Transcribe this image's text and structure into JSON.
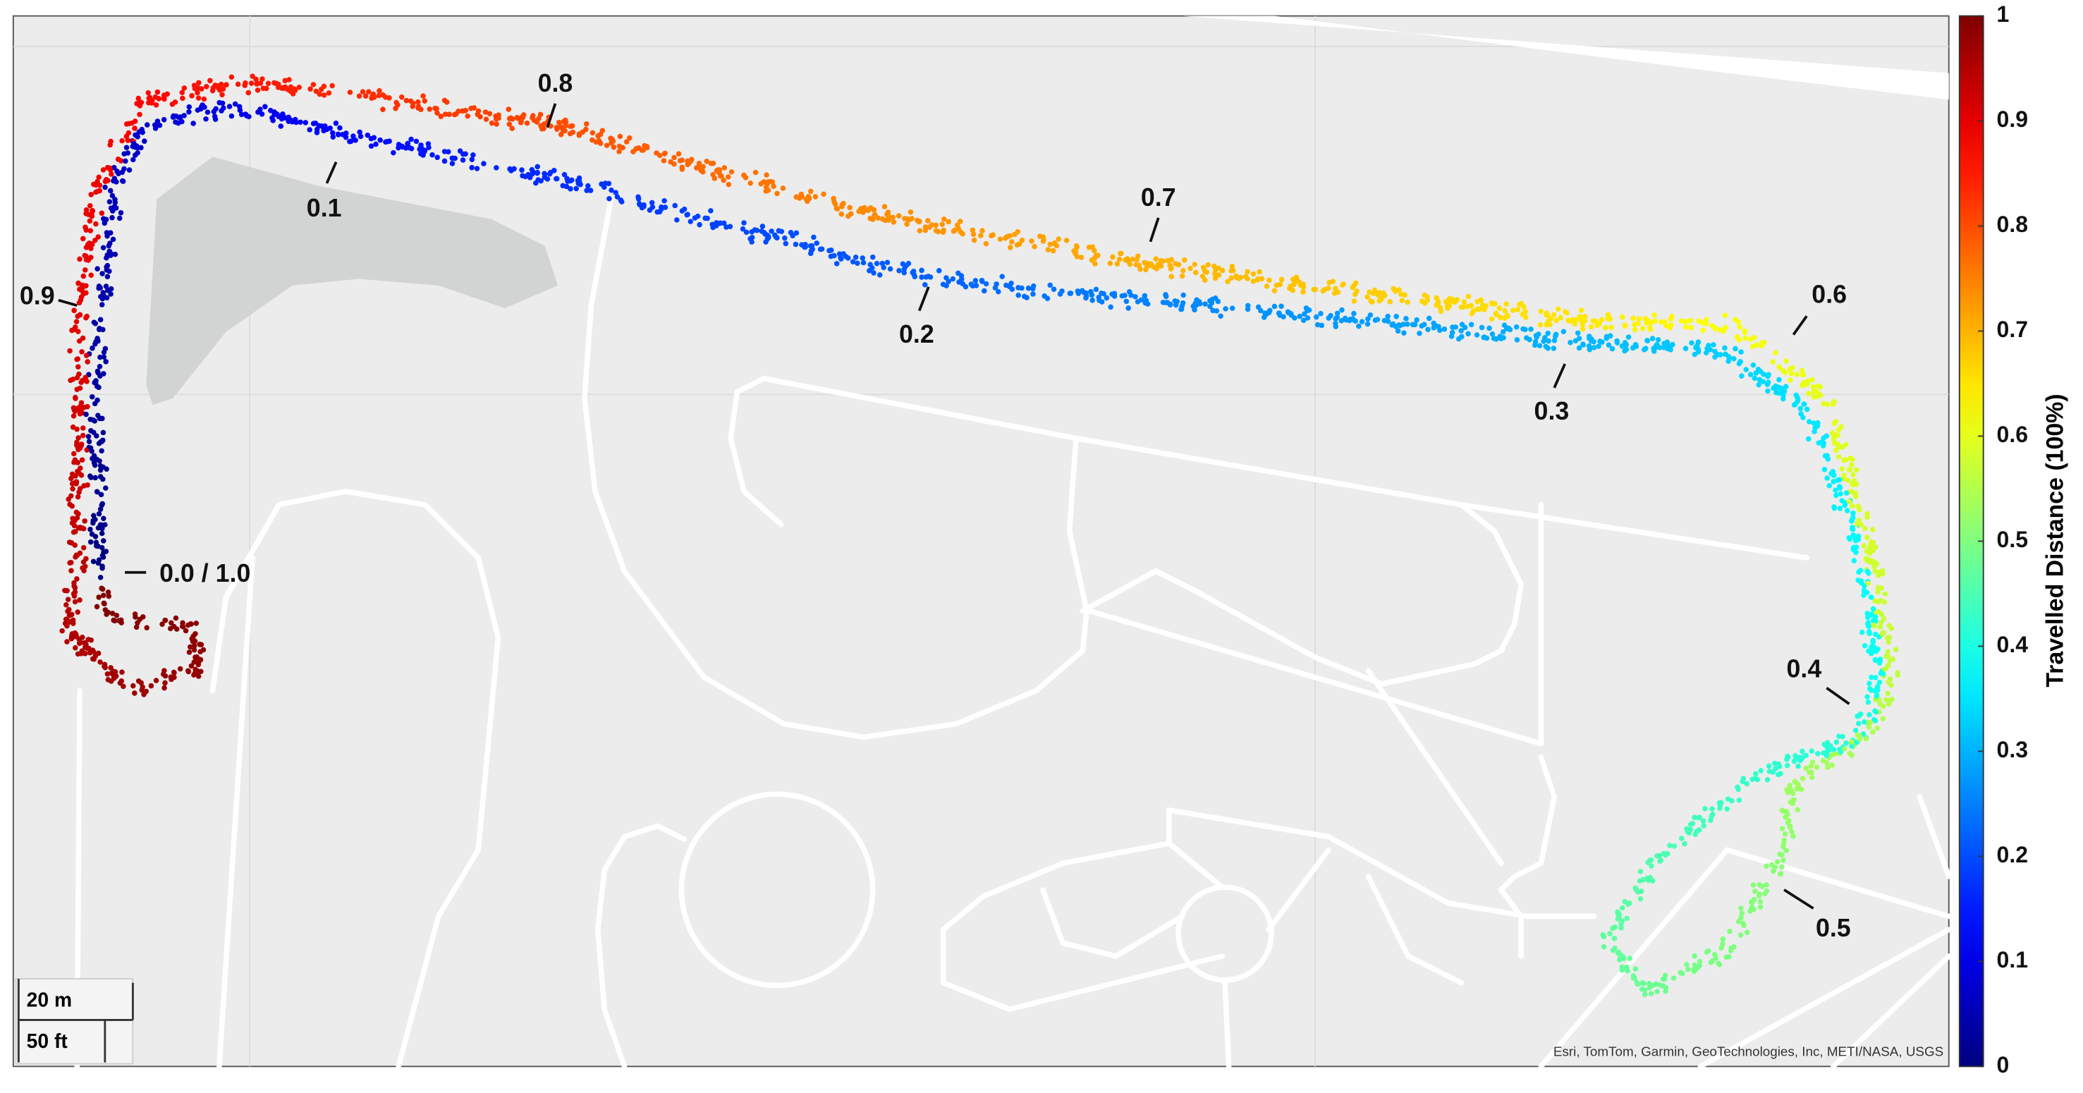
{
  "map": {
    "annotations": [
      "0.1",
      "0.2",
      "0.3",
      "0.4",
      "0.5",
      "0.6",
      "0.7",
      "0.8",
      "0.9",
      "0.0 / 1.0"
    ],
    "scale_bar": {
      "metric": "20 m",
      "imperial": "50 ft"
    },
    "attribution": "Esri, TomTom, Garmin, GeoTechnologies, Inc, METI/NASA, USGS",
    "colorbar": {
      "label": "Travelled Distance (100%)",
      "colormap": "jet",
      "lim": [
        0,
        1
      ],
      "ticks": [
        0,
        0.1,
        0.2,
        0.3,
        0.4,
        0.5,
        0.6,
        0.7,
        0.8,
        0.9,
        1
      ]
    }
  }
}
